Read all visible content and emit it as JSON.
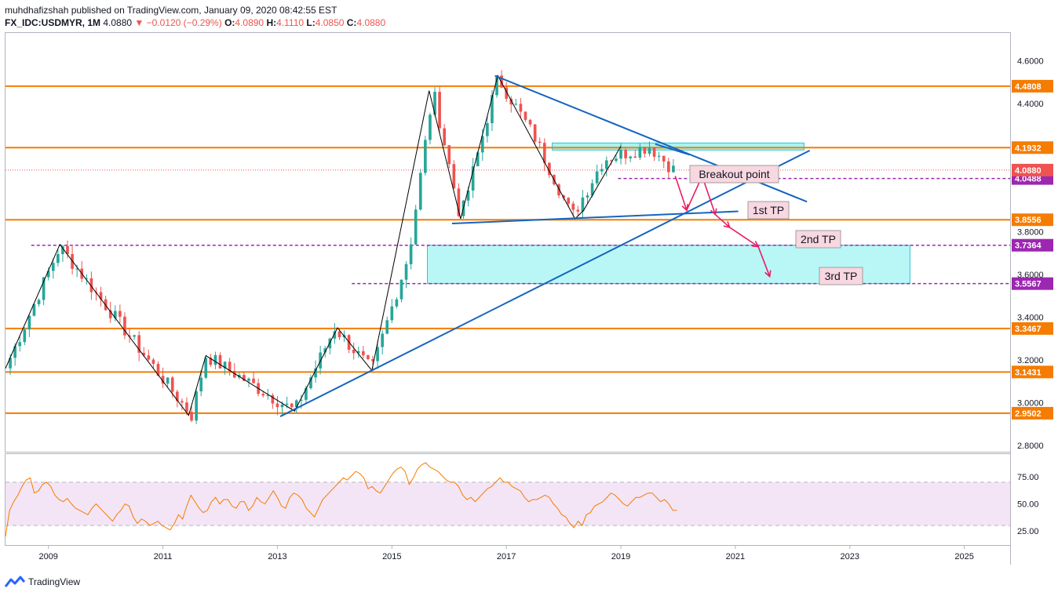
{
  "header": {
    "publisher_line": "muhdhafizshah published on TradingView.com, January 09, 2020 08:42:55 EST",
    "symbol": "FX_IDC:USDMYR, 1M",
    "last": "4.0880",
    "change": "−0.0120 (−0.29%)",
    "o_label": "O:",
    "o": "4.0890",
    "h_label": "H:",
    "h": "4.1110",
    "l_label": "L:",
    "l": "4.0850",
    "c_label": "C:",
    "c": "4.0880"
  },
  "footer": {
    "brand": "TradingView"
  },
  "colors": {
    "up": "#26a69a",
    "down": "#ef5350",
    "support": "#f57c00",
    "target": "#9c27b0",
    "trend": "#1565c0",
    "zone": "#80f0f0",
    "rsi_line": "#f57c00",
    "rsi_band": "#f3e5f5",
    "arrow": "#e91e63"
  },
  "chart_data": {
    "type": "candlestick",
    "symbol": "FX_IDC:USDMYR",
    "interval": "1M",
    "price_axis": {
      "ticks": [
        "4.6000",
        "4.4000",
        "3.8000",
        "3.6000",
        "3.4000",
        "3.2000",
        "3.0000",
        "2.8000"
      ],
      "tick_values": [
        4.6,
        4.4,
        3.8,
        3.6,
        3.4,
        3.2,
        3.0,
        2.8
      ],
      "range": [
        2.77,
        4.73
      ]
    },
    "time_axis": {
      "labels": [
        "2009",
        "2011",
        "2013",
        "2015",
        "2017",
        "2019",
        "2021",
        "2023",
        "2025"
      ],
      "range_years": [
        2008.25,
        2025.8
      ]
    },
    "last_price": {
      "label": "4.0880",
      "value": 4.088
    },
    "horizontal_levels": [
      {
        "value": 4.4808,
        "label": "4.4808",
        "kind": "support"
      },
      {
        "value": 4.1932,
        "label": "4.1932",
        "kind": "support"
      },
      {
        "value": 3.8556,
        "label": "3.8556",
        "kind": "support"
      },
      {
        "value": 3.3467,
        "label": "3.3467",
        "kind": "support"
      },
      {
        "value": 3.1431,
        "label": "3.1431",
        "kind": "support"
      },
      {
        "value": 2.9502,
        "label": "2.9502",
        "kind": "support"
      },
      {
        "value": 4.0488,
        "label": "4.0488",
        "kind": "target"
      },
      {
        "value": 3.7364,
        "label": "3.7364",
        "kind": "target"
      },
      {
        "value": 3.5567,
        "label": "3.5567",
        "kind": "target"
      }
    ],
    "annotations": [
      "Breakout point",
      "1st TP",
      "2nd TP",
      "3rd TP"
    ],
    "pivots": [
      {
        "t": 2008.25,
        "p": 3.16
      },
      {
        "t": 2009.2,
        "p": 3.73
      },
      {
        "t": 2011.5,
        "p": 2.94
      },
      {
        "t": 2011.75,
        "p": 3.22
      },
      {
        "t": 2013.3,
        "p": 2.96
      },
      {
        "t": 2014.0,
        "p": 3.35
      },
      {
        "t": 2014.65,
        "p": 3.15
      },
      {
        "t": 2015.3,
        "p": 3.7
      },
      {
        "t": 2015.72,
        "p": 4.46
      },
      {
        "t": 2016.2,
        "p": 3.86
      },
      {
        "t": 2016.85,
        "p": 4.52
      },
      {
        "t": 2017.5,
        "p": 4.24
      },
      {
        "t": 2018.15,
        "p": 3.87
      },
      {
        "t": 2018.7,
        "p": 4.14
      },
      {
        "t": 2019.5,
        "p": 4.2
      },
      {
        "t": 2019.92,
        "p": 4.09
      }
    ],
    "rsi": {
      "levels": [
        75,
        50,
        25
      ],
      "tick_labels": [
        "75.00",
        "50.00",
        "25.00"
      ],
      "band": [
        30,
        70
      ],
      "range": [
        12,
        96
      ],
      "values": [
        20,
        44,
        52,
        58,
        66,
        72,
        74,
        60,
        62,
        68,
        70,
        66,
        58,
        54,
        52,
        55,
        50,
        46,
        44,
        42,
        40,
        46,
        50,
        46,
        42,
        38,
        34,
        40,
        44,
        50,
        48,
        38,
        32,
        36,
        34,
        30,
        32,
        34,
        30,
        28,
        26,
        32,
        40,
        36,
        48,
        58,
        52,
        46,
        42,
        44,
        52,
        56,
        50,
        54,
        54,
        48,
        46,
        52,
        52,
        44,
        48,
        56,
        52,
        50,
        56,
        62,
        56,
        48,
        46,
        56,
        60,
        58,
        54,
        46,
        42,
        38,
        46,
        54,
        58,
        62,
        66,
        70,
        74,
        72,
        76,
        80,
        78,
        74,
        64,
        66,
        62,
        60,
        66,
        72,
        78,
        82,
        84,
        80,
        68,
        74,
        82,
        86,
        88,
        84,
        82,
        80,
        76,
        72,
        70,
        70,
        66,
        58,
        54,
        56,
        52,
        56,
        60,
        64,
        66,
        70,
        74,
        70,
        70,
        66,
        64,
        62,
        56,
        52,
        54,
        54,
        56,
        58,
        56,
        50,
        46,
        40,
        38,
        32,
        28,
        34,
        30,
        40,
        42,
        48,
        50,
        52,
        56,
        60,
        58,
        54,
        50,
        48,
        52,
        56,
        56,
        58,
        60,
        60,
        56,
        52,
        54,
        50,
        44,
        44
      ]
    }
  }
}
